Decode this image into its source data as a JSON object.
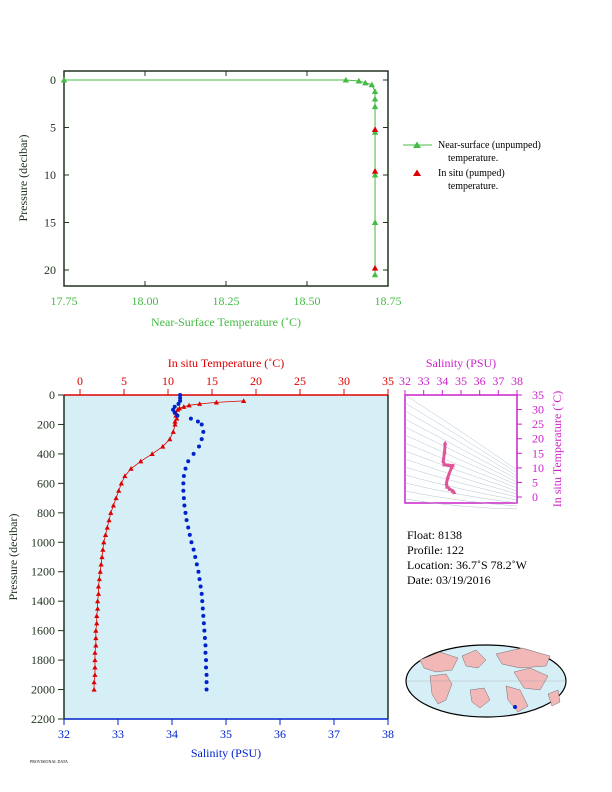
{
  "colors": {
    "green": "#44bb44",
    "red": "#dd0000",
    "blue": "#0022cc",
    "magenta": "#cc22cc",
    "bg": "#d6eff7",
    "dark": "#223322"
  },
  "top_chart": {
    "xlabel": "Near-Surface Temperature (˚C)",
    "ylabel": "Pressure (decibar)",
    "xlim": [
      17.75,
      18.75
    ],
    "ylim": [
      0,
      22
    ],
    "xticks": [
      "17.75",
      "18.00",
      "18.25",
      "18.50",
      "18.75"
    ],
    "yticks": [
      "0",
      "5",
      "10",
      "15",
      "20"
    ],
    "legend": [
      {
        "line1": "Near-surface (unpumped)",
        "line2": "temperature."
      },
      {
        "line1": "In situ (pumped)",
        "line2": "temperature."
      }
    ]
  },
  "main_chart": {
    "xlabel_top": "In situ Temperature (˚C)",
    "xlabel_bottom": "Salinity (PSU)",
    "ylabel": "Pressure (decibar)",
    "temp_ticks": [
      "0",
      "5",
      "10",
      "15",
      "20",
      "25",
      "30",
      "35"
    ],
    "sal_ticks": [
      "32",
      "33",
      "34",
      "35",
      "36",
      "37",
      "38"
    ],
    "pres_ticks": [
      "0",
      "200",
      "400",
      "600",
      "800",
      "1000",
      "1200",
      "1400",
      "1600",
      "1800",
      "2000",
      "2200"
    ]
  },
  "ts_chart": {
    "xlabel": "Salinity (PSU)",
    "ylabel": "In situ Temperature (˚C)",
    "sal_ticks": [
      "32",
      "33",
      "34",
      "35",
      "36",
      "37",
      "38"
    ],
    "temp_ticks": [
      "0",
      "5",
      "10",
      "15",
      "20",
      "25",
      "30",
      "35"
    ]
  },
  "info": {
    "float": "Float:  8138",
    "profile": "Profile:  122",
    "location": "Location:  36.7˚S  78.2˚W",
    "date": "Date:  03/19/2016"
  },
  "footer_note": "PROVISIONAL DATA",
  "chart_data": [
    {
      "type": "line",
      "series": [
        {
          "name": "Near-surface (unpumped) temperature.",
          "x": [
            17.75,
            18.62,
            18.66,
            18.68,
            18.7,
            18.71,
            18.71,
            18.71,
            18.71,
            18.71,
            18.71,
            18.71
          ],
          "y": [
            0,
            0,
            0.1,
            0.3,
            0.5,
            1.2,
            2.0,
            2.8,
            5.5,
            10.0,
            15.0,
            20.5
          ]
        },
        {
          "name": "In situ (pumped) temperature.",
          "x": [
            18.71,
            18.71,
            18.71
          ],
          "y": [
            5.2,
            9.6,
            19.8
          ]
        }
      ]
    },
    {
      "type": "scatter",
      "temperature_series": {
        "pressure": [
          40,
          50,
          60,
          70,
          80,
          90,
          100,
          120,
          140,
          160,
          180,
          200,
          250,
          300,
          350,
          400,
          450,
          500,
          550,
          600,
          650,
          700,
          750,
          800,
          850,
          900,
          950,
          1000,
          1050,
          1100,
          1150,
          1200,
          1250,
          1300,
          1350,
          1400,
          1450,
          1500,
          1550,
          1600,
          1650,
          1700,
          1750,
          1800,
          1850,
          1900,
          1950,
          2000
        ],
        "temperature": [
          18.6,
          15.5,
          13.6,
          12.4,
          11.8,
          11.3,
          11.1,
          10.9,
          10.9,
          11.0,
          10.8,
          10.8,
          10.6,
          10.2,
          9.4,
          8.2,
          6.9,
          5.8,
          5.1,
          4.7,
          4.4,
          4.1,
          3.8,
          3.5,
          3.3,
          3.1,
          2.9,
          2.7,
          2.6,
          2.5,
          2.4,
          2.3,
          2.2,
          2.1,
          2.1,
          2.0,
          2.0,
          1.9,
          1.9,
          1.8,
          1.8,
          1.8,
          1.7,
          1.7,
          1.7,
          1.7,
          1.6,
          1.6
        ]
      },
      "salinity_series": {
        "pressure": [
          0,
          20,
          40,
          60,
          80,
          100,
          120,
          140,
          160,
          180,
          200,
          250,
          300,
          350,
          400,
          450,
          500,
          550,
          600,
          650,
          700,
          750,
          800,
          850,
          900,
          950,
          1000,
          1050,
          1100,
          1150,
          1200,
          1250,
          1300,
          1350,
          1400,
          1450,
          1500,
          1550,
          1600,
          1650,
          1700,
          1750,
          1800,
          1850,
          1900,
          1950,
          2000
        ],
        "salinity": [
          34.15,
          34.15,
          34.15,
          34.12,
          34.05,
          34.02,
          34.05,
          34.1,
          34.35,
          34.48,
          34.55,
          34.58,
          34.55,
          34.5,
          34.4,
          34.3,
          34.25,
          34.22,
          34.21,
          34.21,
          34.22,
          34.23,
          34.25,
          34.27,
          34.3,
          34.33,
          34.36,
          34.4,
          34.43,
          34.46,
          34.49,
          34.51,
          34.53,
          34.55,
          34.56,
          34.57,
          34.58,
          34.59,
          34.6,
          34.61,
          34.62,
          34.62,
          34.63,
          34.63,
          34.64,
          34.64,
          34.64
        ]
      }
    },
    {
      "type": "scatter",
      "salinity": [
        34.15,
        34.12,
        34.05,
        34.1,
        34.35,
        34.55,
        34.5,
        34.3,
        34.22,
        34.25,
        34.4,
        34.58,
        34.64
      ],
      "temperature": [
        18.6,
        15.5,
        12.4,
        11.1,
        10.9,
        10.8,
        10.2,
        6.9,
        4.7,
        3.5,
        2.7,
        2.0,
        1.6
      ]
    }
  ]
}
